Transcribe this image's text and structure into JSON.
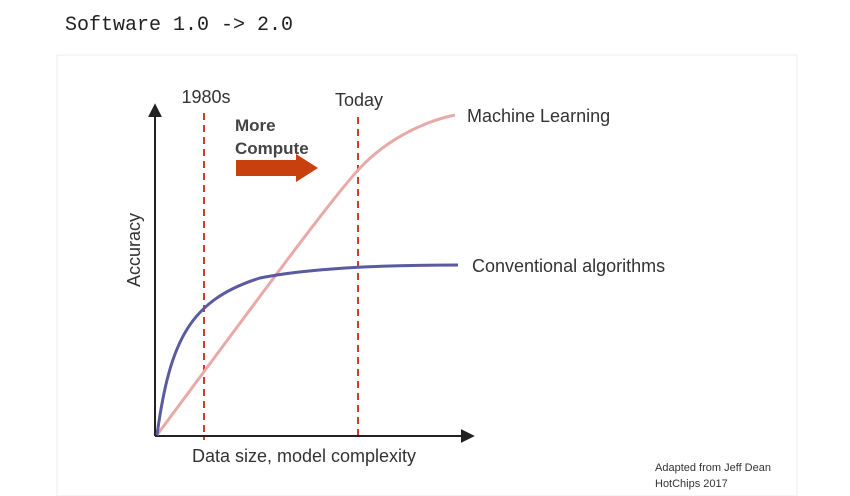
{
  "header": {
    "title": "Software 1.0 -> 2.0"
  },
  "figure": {
    "markers": [
      "1980s",
      "Today"
    ],
    "arrow_label": [
      "More",
      "Compute"
    ],
    "curves": [
      "Machine Learning",
      "Conventional algorithms"
    ],
    "y_axis_label": "Accuracy",
    "x_axis_label": "Data size, model complexity",
    "credit": [
      "Adapted from Jeff Dean",
      "HotChips 2017"
    ]
  }
}
